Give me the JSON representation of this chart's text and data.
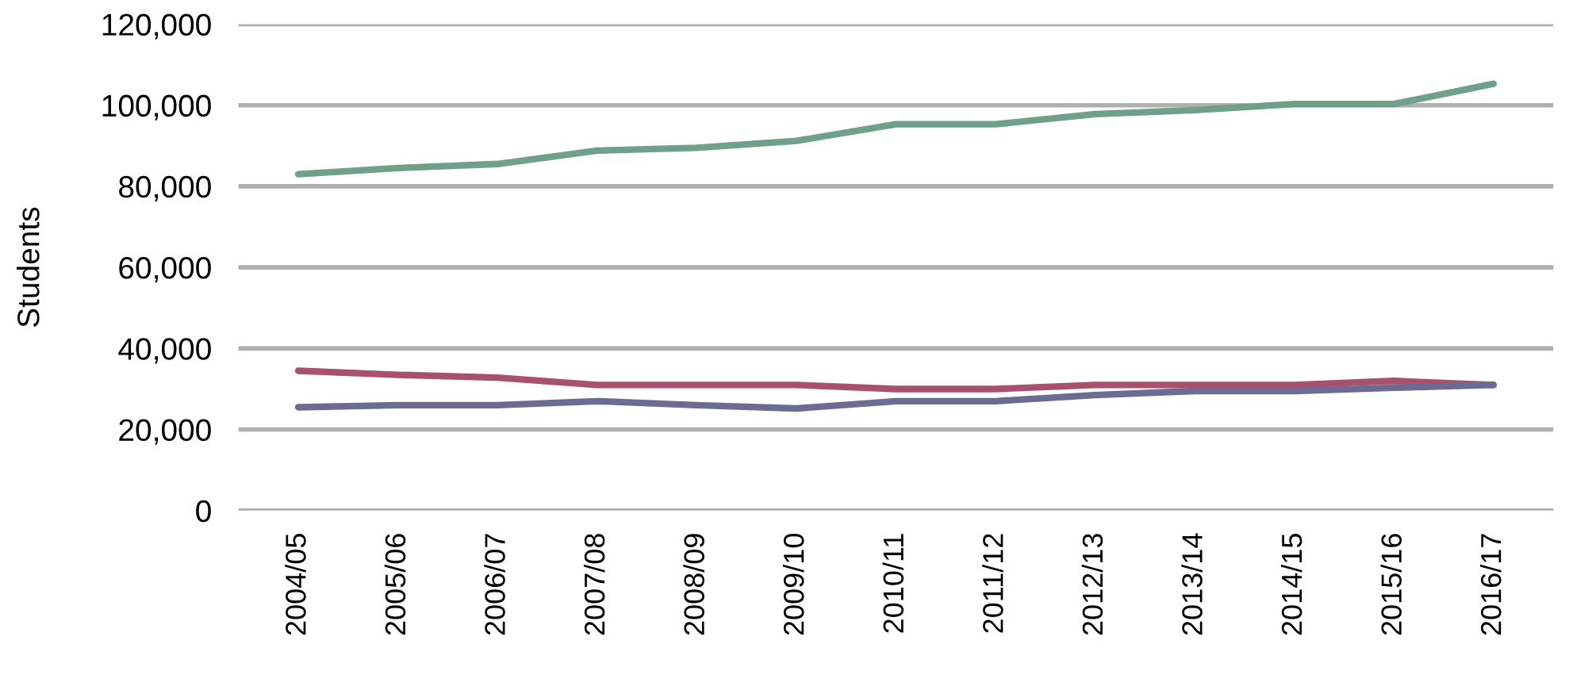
{
  "chart_data": {
    "type": "line",
    "ylabel": "Students",
    "categories": [
      "2004/05",
      "2005/06",
      "2006/07",
      "2007/08",
      "2008/09",
      "2009/10",
      "2010/11",
      "2011/12",
      "2012/13",
      "2013/14",
      "2014/15",
      "2015/16",
      "2016/17"
    ],
    "series": [
      {
        "color": "#6fa08a",
        "values": [
          83000,
          84500,
          85500,
          88800,
          89500,
          91200,
          95300,
          95300,
          97800,
          98800,
          100300,
          100300,
          105300
        ]
      },
      {
        "color": "#a8506e",
        "values": [
          34500,
          33500,
          32800,
          31000,
          31000,
          31000,
          30000,
          30000,
          31000,
          31000,
          31000,
          32000,
          31000
        ]
      },
      {
        "color": "#6b6b93",
        "values": [
          25500,
          26000,
          26000,
          27000,
          26000,
          25200,
          27000,
          27000,
          28500,
          29500,
          29500,
          30300,
          31000
        ]
      }
    ],
    "ylim": [
      0,
      120000
    ],
    "yticks": [
      {
        "value": 0,
        "label": "0"
      },
      {
        "value": 20000,
        "label": "20,000"
      },
      {
        "value": 40000,
        "label": "40,000"
      },
      {
        "value": 60000,
        "label": "60,000"
      },
      {
        "value": 80000,
        "label": "80,000"
      },
      {
        "value": 100000,
        "label": "100,000"
      },
      {
        "value": 120000,
        "label": "120,000"
      }
    ],
    "grid": "y",
    "marker": "none",
    "line_style": "solid"
  }
}
